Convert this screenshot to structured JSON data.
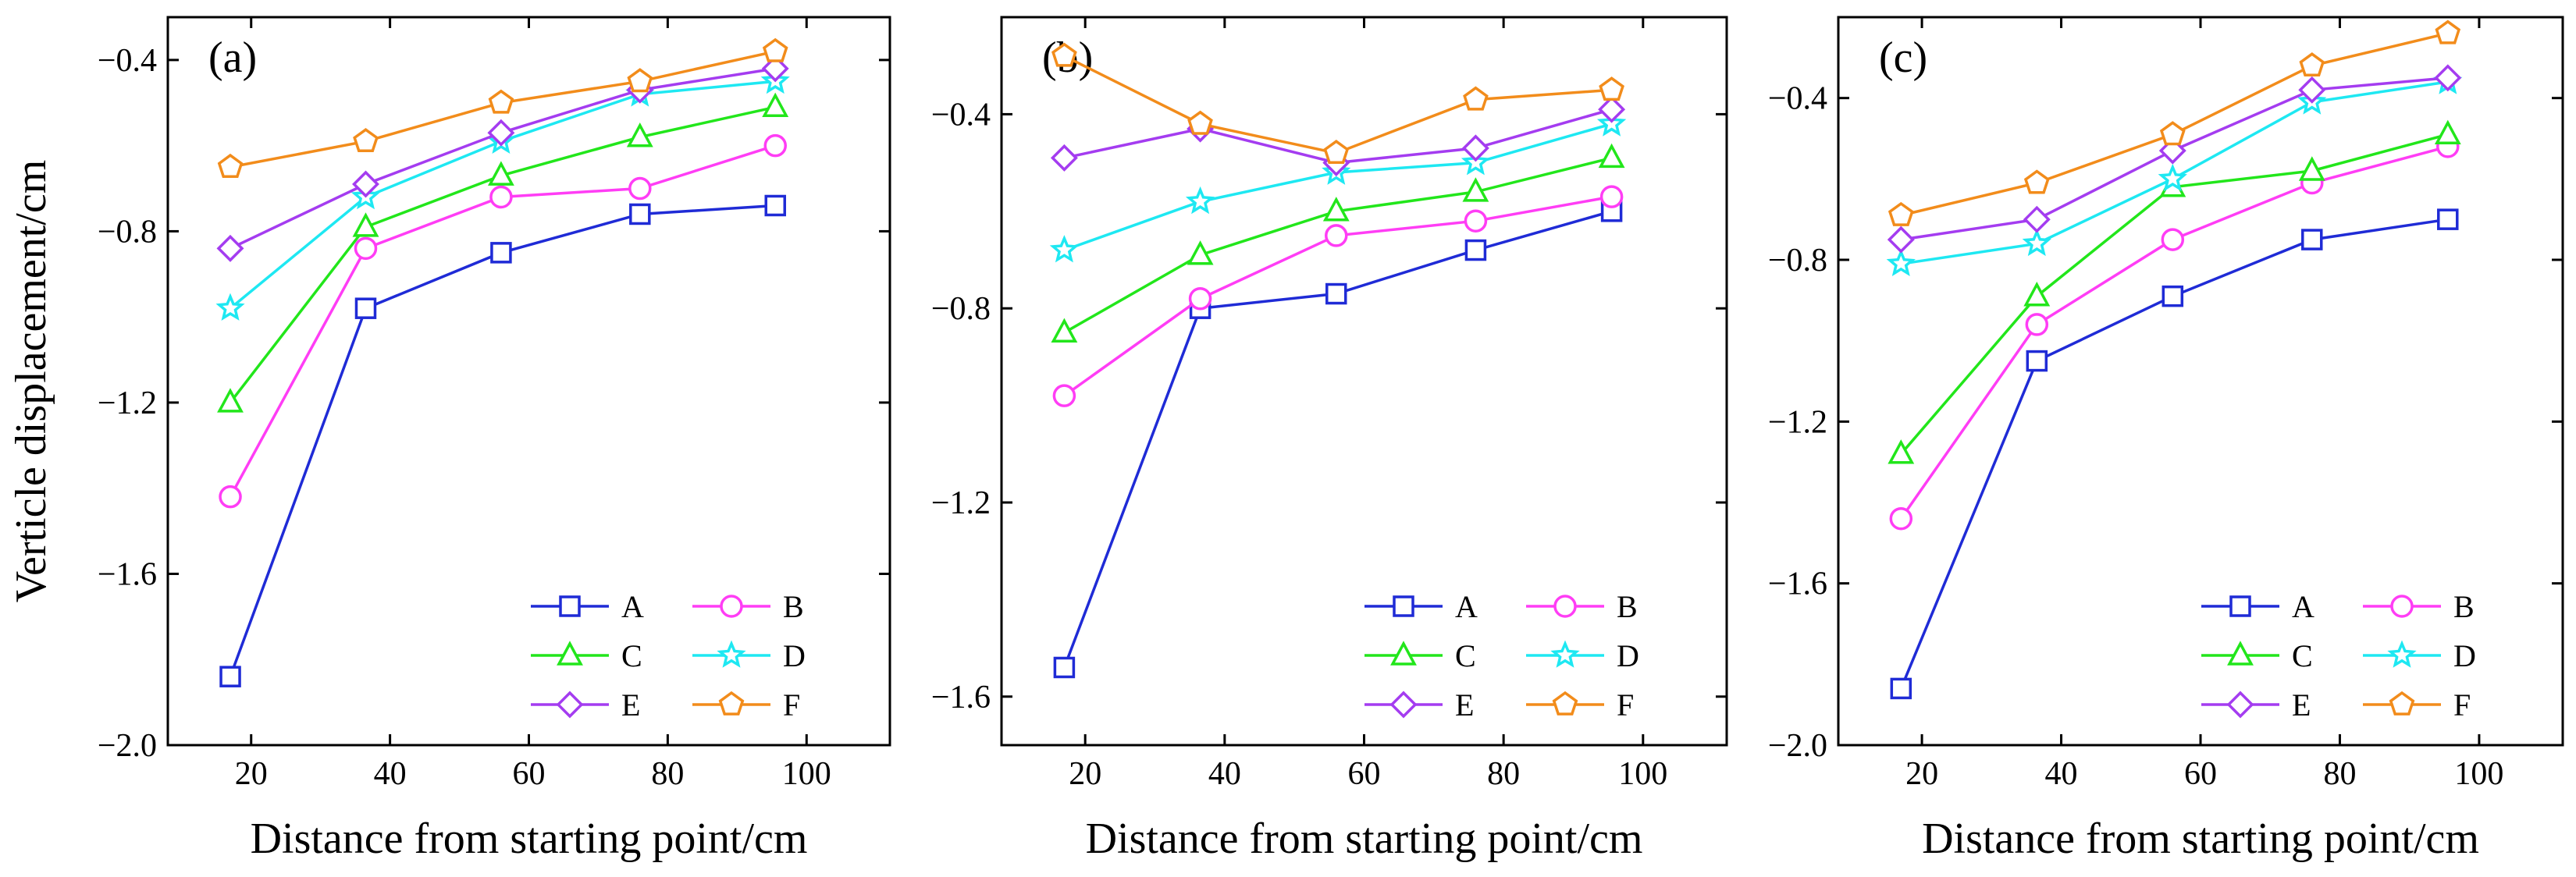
{
  "chart_data": [
    {
      "type": "line",
      "panel_label": "(a)",
      "xlabel": "Distance from starting point/cm",
      "ylabel": "Verticle displacement/cm",
      "xlim": [
        8,
        112
      ],
      "ylim": [
        -2.0,
        -0.3
      ],
      "xticks": [
        20,
        40,
        60,
        80,
        100
      ],
      "yticks": [
        -2.0,
        -1.6,
        -1.2,
        -0.8,
        -0.4
      ],
      "ytick_labels": [
        "−2.0",
        "−1.6",
        "−1.2",
        "−0.8",
        "−0.4"
      ],
      "x": [
        17,
        36.5,
        56,
        76,
        95.5
      ],
      "legend_position": "bottom-right",
      "series": [
        {
          "name": "A",
          "color": "#1f2bd6",
          "marker": "square",
          "values": [
            -1.84,
            -0.98,
            -0.85,
            -0.76,
            -0.74
          ]
        },
        {
          "name": "B",
          "color": "#ff3df5",
          "marker": "circle",
          "values": [
            -1.42,
            -0.84,
            -0.72,
            -0.7,
            -0.6
          ]
        },
        {
          "name": "C",
          "color": "#22e61b",
          "marker": "triangle",
          "values": [
            -1.2,
            -0.79,
            -0.67,
            -0.58,
            -0.51
          ]
        },
        {
          "name": "D",
          "color": "#1ee8f2",
          "marker": "star",
          "values": [
            -0.98,
            -0.72,
            -0.59,
            -0.48,
            -0.45
          ]
        },
        {
          "name": "E",
          "color": "#a43cf0",
          "marker": "diamond",
          "values": [
            -0.84,
            -0.69,
            -0.57,
            -0.47,
            -0.42
          ]
        },
        {
          "name": "F",
          "color": "#f28c1b",
          "marker": "pentagon",
          "values": [
            -0.65,
            -0.59,
            -0.5,
            -0.45,
            -0.38
          ]
        }
      ]
    },
    {
      "type": "line",
      "panel_label": "(b)",
      "xlabel": "Distance from starting point/cm",
      "ylabel": "",
      "xlim": [
        8,
        112
      ],
      "ylim": [
        -1.7,
        -0.2
      ],
      "xticks": [
        20,
        40,
        60,
        80,
        100
      ],
      "yticks": [
        -1.6,
        -1.2,
        -0.8,
        -0.4
      ],
      "ytick_labels": [
        "−1.6",
        "−1.2",
        "−0.8",
        "−0.4"
      ],
      "x": [
        17,
        36.5,
        56,
        76,
        95.5
      ],
      "legend_position": "bottom-right",
      "series": [
        {
          "name": "A",
          "color": "#1f2bd6",
          "marker": "square",
          "values": [
            -1.54,
            -0.8,
            -0.77,
            -0.68,
            -0.6
          ]
        },
        {
          "name": "B",
          "color": "#ff3df5",
          "marker": "circle",
          "values": [
            -0.98,
            -0.78,
            -0.65,
            -0.62,
            -0.57
          ]
        },
        {
          "name": "C",
          "color": "#22e61b",
          "marker": "triangle",
          "values": [
            -0.85,
            -0.69,
            -0.6,
            -0.56,
            -0.49
          ]
        },
        {
          "name": "D",
          "color": "#1ee8f2",
          "marker": "star",
          "values": [
            -0.68,
            -0.58,
            -0.52,
            -0.5,
            -0.42
          ]
        },
        {
          "name": "E",
          "color": "#a43cf0",
          "marker": "diamond",
          "values": [
            -0.49,
            -0.43,
            -0.5,
            -0.47,
            -0.39
          ]
        },
        {
          "name": "F",
          "color": "#f28c1b",
          "marker": "pentagon",
          "values": [
            -0.28,
            -0.42,
            -0.48,
            -0.37,
            -0.35
          ]
        }
      ]
    },
    {
      "type": "line",
      "panel_label": "(c)",
      "xlabel": "Distance from starting point/cm",
      "ylabel": "",
      "xlim": [
        8,
        112
      ],
      "ylim": [
        -2.0,
        -0.2
      ],
      "xticks": [
        20,
        40,
        60,
        80,
        100
      ],
      "yticks": [
        -2.0,
        -1.6,
        -1.2,
        -0.8,
        -0.4
      ],
      "ytick_labels": [
        "−2.0",
        "−1.6",
        "−1.2",
        "−0.8",
        "−0.4"
      ],
      "x": [
        17,
        36.5,
        56,
        76,
        95.5
      ],
      "legend_position": "bottom-right",
      "series": [
        {
          "name": "A",
          "color": "#1f2bd6",
          "marker": "square",
          "values": [
            -1.86,
            -1.05,
            -0.89,
            -0.75,
            -0.7
          ]
        },
        {
          "name": "B",
          "color": "#ff3df5",
          "marker": "circle",
          "values": [
            -1.44,
            -0.96,
            -0.75,
            -0.61,
            -0.52
          ]
        },
        {
          "name": "C",
          "color": "#22e61b",
          "marker": "triangle",
          "values": [
            -1.28,
            -0.89,
            -0.62,
            -0.58,
            -0.49
          ]
        },
        {
          "name": "D",
          "color": "#1ee8f2",
          "marker": "star",
          "values": [
            -0.81,
            -0.76,
            -0.6,
            -0.41,
            -0.36
          ]
        },
        {
          "name": "E",
          "color": "#a43cf0",
          "marker": "diamond",
          "values": [
            -0.75,
            -0.7,
            -0.53,
            -0.38,
            -0.35
          ]
        },
        {
          "name": "F",
          "color": "#f28c1b",
          "marker": "pentagon",
          "values": [
            -0.69,
            -0.61,
            -0.49,
            -0.32,
            -0.24
          ]
        }
      ]
    }
  ]
}
